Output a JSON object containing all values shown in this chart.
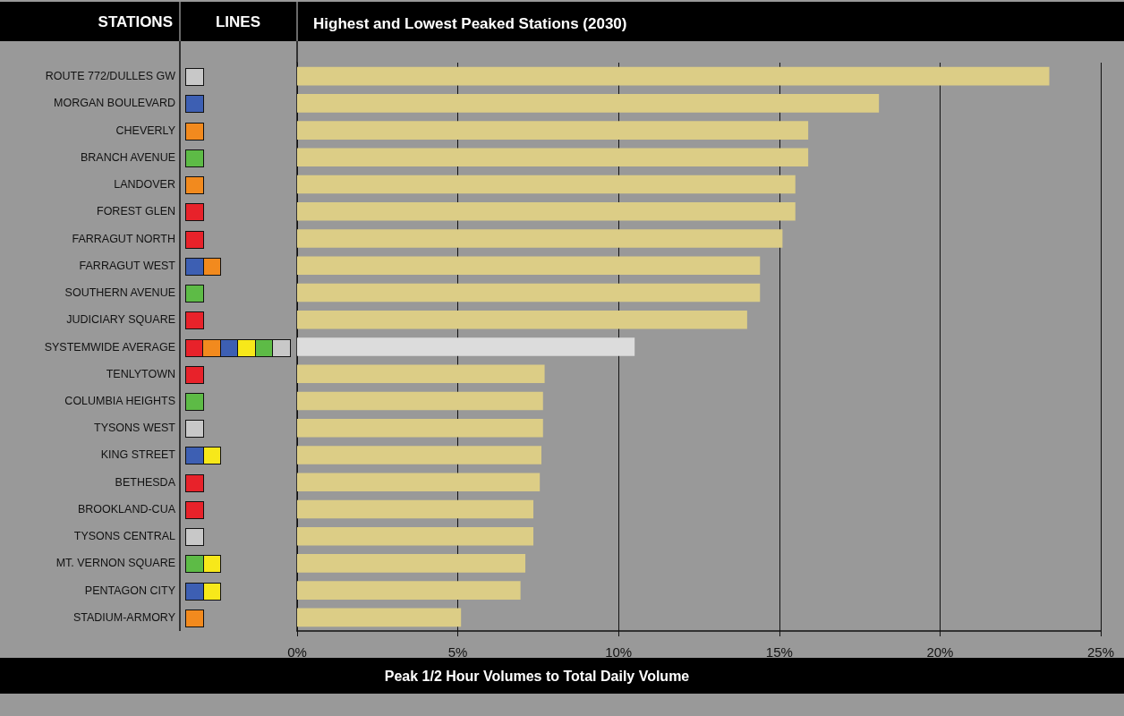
{
  "chart_data": {
    "type": "bar",
    "orientation": "horizontal",
    "title": "Highest and Lowest Peaked Stations (2030)",
    "xlabel": "Peak 1/2 Hour Volumes to Total Daily Volume",
    "annotations": [
      "STATIONS",
      "LINES"
    ],
    "categories": [
      "ROUTE 772/DULLES GW",
      "MORGAN BOULEVARD",
      "CHEVERLY",
      "BRANCH AVENUE",
      "LANDOVER",
      "FOREST GLEN",
      "FARRAGUT NORTH",
      "FARRAGUT WEST",
      "SOUTHERN AVENUE",
      "JUDICIARY SQUARE",
      "SYSTEMWIDE AVERAGE",
      "TENLYTOWN",
      "COLUMBIA HEIGHTS",
      "TYSONS WEST",
      "KING STREET",
      "BETHESDA",
      "BROOKLAND-CUA",
      "TYSONS CENTRAL",
      "MT. VERNON SQUARE",
      "PENTAGON CITY",
      "STADIUM-ARMORY"
    ],
    "values": [
      23.4,
      18.1,
      15.9,
      15.9,
      15.5,
      15.5,
      15.1,
      14.4,
      14.4,
      14.0,
      10.5,
      7.7,
      7.65,
      7.65,
      7.6,
      7.55,
      7.35,
      7.35,
      7.1,
      6.95,
      5.1
    ],
    "colors": [
      "#dccd86",
      "#dccd86",
      "#dccd86",
      "#dccd86",
      "#dccd86",
      "#dccd86",
      "#dccd86",
      "#dccd86",
      "#dccd86",
      "#dccd86",
      "#dcdcdc",
      "#dccd86",
      "#dccd86",
      "#dccd86",
      "#dccd86",
      "#dccd86",
      "#dccd86",
      "#dccd86",
      "#dccd86",
      "#dccd86",
      "#dccd86"
    ],
    "xlim": [
      0,
      25
    ],
    "xticks": [
      {
        "value": 0,
        "label": "0%"
      },
      {
        "value": 5,
        "label": "5%"
      },
      {
        "value": 10,
        "label": "10%"
      },
      {
        "value": 15,
        "label": "15%"
      },
      {
        "value": 20,
        "label": "20%"
      },
      {
        "value": 25,
        "label": "25%"
      }
    ],
    "grid": "x"
  }
}
